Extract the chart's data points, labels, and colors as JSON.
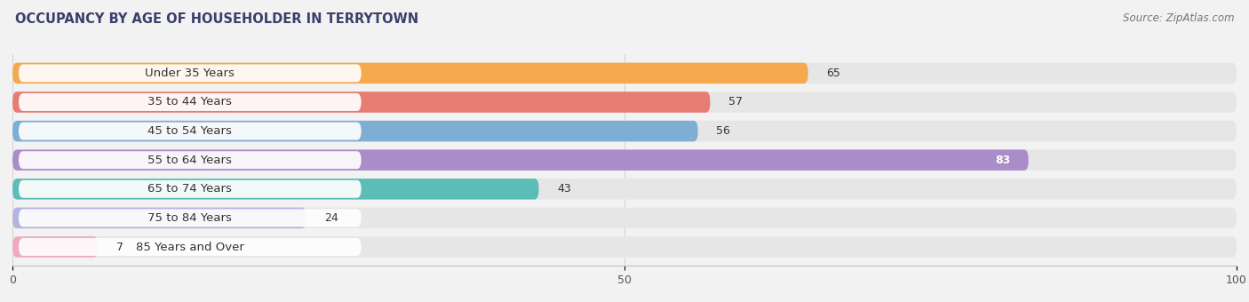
{
  "title": "OCCUPANCY BY AGE OF HOUSEHOLDER IN TERRYTOWN",
  "source": "Source: ZipAtlas.com",
  "categories": [
    "Under 35 Years",
    "35 to 44 Years",
    "45 to 54 Years",
    "55 to 64 Years",
    "65 to 74 Years",
    "75 to 84 Years",
    "85 Years and Over"
  ],
  "values": [
    65,
    57,
    56,
    83,
    43,
    24,
    7
  ],
  "bar_colors": [
    "#f5a94e",
    "#e87b72",
    "#7eaed4",
    "#a98cc8",
    "#5bbcb8",
    "#b3b3e0",
    "#f4a8bc"
  ],
  "xlim": [
    0,
    100
  ],
  "xticks": [
    0,
    50,
    100
  ],
  "bar_height": 0.72,
  "background_color": "#f2f2f2",
  "bar_background_color": "#e6e6e6",
  "label_bg_color": "#ffffff",
  "title_fontsize": 10.5,
  "source_fontsize": 8.5,
  "label_fontsize": 9.5,
  "value_fontsize": 9.0,
  "title_color": "#3a3f6b",
  "label_text_color": "#333333",
  "value_color_inside": "#ffffff",
  "value_color_outside": "#333333"
}
